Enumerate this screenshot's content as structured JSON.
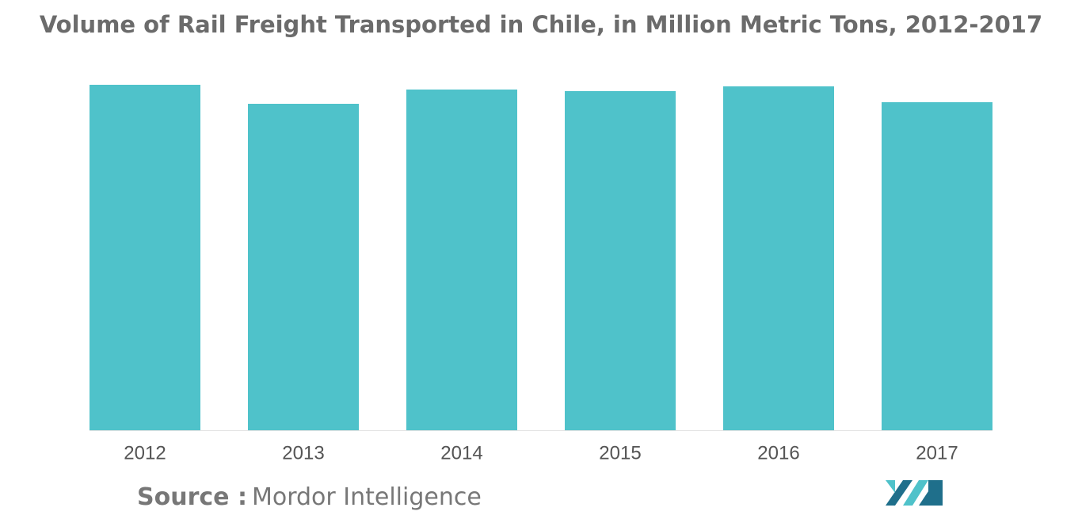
{
  "chart_data": {
    "type": "bar",
    "title": "Volume of Rail Freight Transported in Chile, in Million Metric Tons, 2012-2017",
    "categories": [
      "2012",
      "2013",
      "2014",
      "2015",
      "2016",
      "2017"
    ],
    "values": [
      10.9,
      10.3,
      10.75,
      10.7,
      10.85,
      10.35
    ],
    "color": "#4fc2ca",
    "ylim": [
      0,
      11
    ],
    "source_label": "Source :",
    "source": "Mordor Intelligence"
  }
}
